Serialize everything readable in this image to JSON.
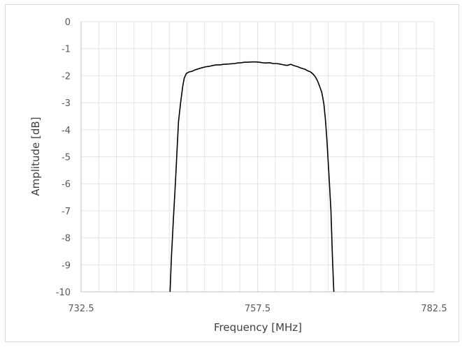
{
  "chart_data": {
    "type": "line",
    "title": "",
    "xlabel": "Frequency [MHz]",
    "ylabel": "Amplitude [dB]",
    "xlim": [
      732.5,
      782.5
    ],
    "ylim": [
      -10,
      0
    ],
    "grid": true,
    "legend": "none",
    "line_color": "#000000",
    "x_ticks": [
      "732.5",
      "757.5",
      "782.5"
    ],
    "y_ticks": [
      "0",
      "-1",
      "-2",
      "-3",
      "-4",
      "-5",
      "-6",
      "-7",
      "-8",
      "-9",
      "-10"
    ],
    "series": [
      {
        "x": [
          745.1,
          745.3,
          745.6,
          745.9,
          746.1,
          746.3,
          746.6,
          746.9,
          747.1,
          747.4,
          747.8,
          748.2,
          748.7,
          749.2,
          749.7,
          750.2,
          750.7,
          751.2,
          751.7,
          752.2,
          752.7,
          753.2,
          753.7,
          754.2,
          754.7,
          755.2,
          755.7,
          756.2,
          756.7,
          757.2,
          757.7,
          758.2,
          758.7,
          759.2,
          759.7,
          760.2,
          760.7,
          761.2,
          761.7,
          762.2,
          762.7,
          763.2,
          763.7,
          764.2,
          764.6,
          765.0,
          765.4,
          765.7,
          766.0,
          766.3,
          766.6,
          766.9,
          767.1,
          767.3,
          767.6,
          767.9,
          768.1,
          768.3
        ],
        "y": [
          -10.0,
          -8.7,
          -7.2,
          -5.8,
          -4.7,
          -3.7,
          -3.0,
          -2.4,
          -2.1,
          -1.92,
          -1.86,
          -1.84,
          -1.78,
          -1.74,
          -1.7,
          -1.67,
          -1.65,
          -1.62,
          -1.6,
          -1.6,
          -1.58,
          -1.57,
          -1.56,
          -1.55,
          -1.53,
          -1.52,
          -1.5,
          -1.5,
          -1.49,
          -1.49,
          -1.5,
          -1.52,
          -1.53,
          -1.52,
          -1.55,
          -1.55,
          -1.57,
          -1.6,
          -1.62,
          -1.58,
          -1.63,
          -1.67,
          -1.72,
          -1.76,
          -1.82,
          -1.86,
          -1.95,
          -2.05,
          -2.2,
          -2.4,
          -2.62,
          -3.05,
          -3.6,
          -4.3,
          -5.6,
          -7.0,
          -8.7,
          -10.0
        ]
      }
    ]
  }
}
